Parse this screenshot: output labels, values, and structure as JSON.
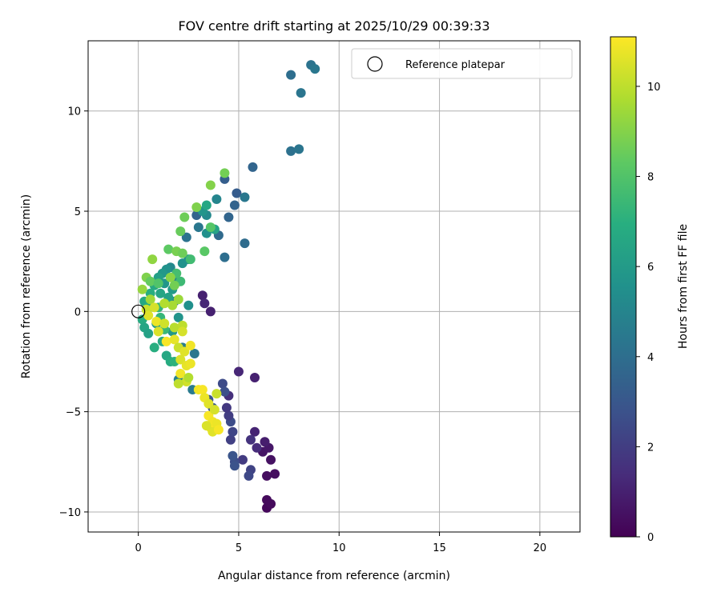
{
  "chart_data": {
    "type": "scatter",
    "title": "FOV centre drift starting at 2025/10/29 00:39:33",
    "xlabel": "Angular distance from reference (arcmin)",
    "ylabel": "Rotation from reference (arcmin)",
    "xlim": [
      -2.5,
      22
    ],
    "ylim": [
      -11,
      13.5
    ],
    "xticks": [
      0,
      5,
      10,
      15,
      20
    ],
    "yticks": [
      -10,
      -5,
      0,
      5,
      10
    ],
    "grid": true,
    "legend": {
      "position": "top-right",
      "entries": [
        "Reference platepar"
      ]
    },
    "reference_point": {
      "x": 0,
      "y": 0,
      "label": "Reference platepar"
    },
    "colorbar": {
      "label": "Hours from first FF file",
      "min": 0,
      "max": 11.1,
      "ticks": [
        0,
        2,
        4,
        6,
        8,
        10
      ],
      "colormap": "viridis"
    },
    "points": [
      {
        "x": 6.4,
        "y": -9.8,
        "t": 0.2
      },
      {
        "x": 6.6,
        "y": -9.6,
        "t": 0.3
      },
      {
        "x": 6.4,
        "y": -9.4,
        "t": 0.3
      },
      {
        "x": 6.4,
        "y": -8.2,
        "t": 0.4
      },
      {
        "x": 6.8,
        "y": -8.1,
        "t": 0.4
      },
      {
        "x": 6.6,
        "y": -7.4,
        "t": 0.5
      },
      {
        "x": 6.2,
        "y": -7.0,
        "t": 0.6
      },
      {
        "x": 6.5,
        "y": -6.8,
        "t": 0.7
      },
      {
        "x": 6.3,
        "y": -6.5,
        "t": 0.9
      },
      {
        "x": 5.8,
        "y": -6.0,
        "t": 1.1
      },
      {
        "x": 5.9,
        "y": -6.8,
        "t": 1.4
      },
      {
        "x": 5.6,
        "y": -6.4,
        "t": 1.6
      },
      {
        "x": 5.2,
        "y": -7.4,
        "t": 1.9
      },
      {
        "x": 5.6,
        "y": -7.9,
        "t": 2.2
      },
      {
        "x": 5.5,
        "y": -8.2,
        "t": 2.4
      },
      {
        "x": 4.8,
        "y": -7.5,
        "t": 2.6
      },
      {
        "x": 4.8,
        "y": -7.7,
        "t": 2.8
      },
      {
        "x": 4.7,
        "y": -7.2,
        "t": 2.9
      },
      {
        "x": 4.6,
        "y": -6.4,
        "t": 2.1
      },
      {
        "x": 4.7,
        "y": -6.0,
        "t": 2.3
      },
      {
        "x": 4.6,
        "y": -5.5,
        "t": 2.6
      },
      {
        "x": 4.5,
        "y": -5.2,
        "t": 2.0
      },
      {
        "x": 4.4,
        "y": -4.8,
        "t": 1.8
      },
      {
        "x": 4.5,
        "y": -4.2,
        "t": 1.5
      },
      {
        "x": 4.2,
        "y": -3.6,
        "t": 2.5
      },
      {
        "x": 4.3,
        "y": -4.0,
        "t": 2.7
      },
      {
        "x": 3.5,
        "y": -4.4,
        "t": 2.9
      },
      {
        "x": 3.7,
        "y": -4.8,
        "t": 3.0
      },
      {
        "x": 5.0,
        "y": -3.0,
        "t": 1.2
      },
      {
        "x": 5.8,
        "y": -3.3,
        "t": 1.0
      },
      {
        "x": 3.2,
        "y": 0.8,
        "t": 1.0
      },
      {
        "x": 3.3,
        "y": 0.4,
        "t": 1.2
      },
      {
        "x": 3.6,
        "y": 0.0,
        "t": 1.0
      },
      {
        "x": 5.7,
        "y": 7.2,
        "t": 3.6
      },
      {
        "x": 4.3,
        "y": 6.6,
        "t": 3.3
      },
      {
        "x": 4.9,
        "y": 5.9,
        "t": 3.2
      },
      {
        "x": 4.8,
        "y": 5.3,
        "t": 3.5
      },
      {
        "x": 4.5,
        "y": 4.7,
        "t": 3.6
      },
      {
        "x": 5.3,
        "y": 5.7,
        "t": 4.4
      },
      {
        "x": 5.3,
        "y": 3.4,
        "t": 3.9
      },
      {
        "x": 4.3,
        "y": 2.7,
        "t": 4.0
      },
      {
        "x": 4.0,
        "y": 3.8,
        "t": 3.8
      },
      {
        "x": 2.9,
        "y": 4.8,
        "t": 3.5
      },
      {
        "x": 2.4,
        "y": 3.7,
        "t": 4.2
      },
      {
        "x": 3.0,
        "y": 4.2,
        "t": 4.4
      },
      {
        "x": 8.6,
        "y": 12.3,
        "t": 4.2
      },
      {
        "x": 8.8,
        "y": 12.1,
        "t": 4.4
      },
      {
        "x": 7.6,
        "y": 11.8,
        "t": 4.0
      },
      {
        "x": 8.1,
        "y": 10.9,
        "t": 4.3
      },
      {
        "x": 7.6,
        "y": 8.0,
        "t": 4.1
      },
      {
        "x": 8.0,
        "y": 8.1,
        "t": 4.3
      },
      {
        "x": 2.8,
        "y": -2.1,
        "t": 4.4
      },
      {
        "x": 2.7,
        "y": -3.9,
        "t": 4.5
      },
      {
        "x": 2.0,
        "y": -3.4,
        "t": 4.8
      },
      {
        "x": 2.2,
        "y": -1.8,
        "t": 4.6
      },
      {
        "x": 1.8,
        "y": 0.5,
        "t": 4.7
      },
      {
        "x": 2.0,
        "y": 1.5,
        "t": 4.9
      },
      {
        "x": 3.9,
        "y": 5.6,
        "t": 5.0
      },
      {
        "x": 3.4,
        "y": 4.8,
        "t": 5.2
      },
      {
        "x": 3.2,
        "y": 5.0,
        "t": 5.7
      },
      {
        "x": 3.4,
        "y": 3.9,
        "t": 5.5
      },
      {
        "x": 3.8,
        "y": 4.1,
        "t": 6.4
      },
      {
        "x": 3.4,
        "y": 5.3,
        "t": 6.6
      },
      {
        "x": 2.5,
        "y": 2.6,
        "t": 5.4
      },
      {
        "x": 2.2,
        "y": 2.4,
        "t": 5.6
      },
      {
        "x": 1.6,
        "y": 2.2,
        "t": 5.2
      },
      {
        "x": 1.4,
        "y": 2.1,
        "t": 5.6
      },
      {
        "x": 1.2,
        "y": 1.9,
        "t": 5.9
      },
      {
        "x": 1.0,
        "y": 1.7,
        "t": 6.2
      },
      {
        "x": 1.3,
        "y": 1.4,
        "t": 5.8
      },
      {
        "x": 1.7,
        "y": 1.1,
        "t": 6.0
      },
      {
        "x": 1.5,
        "y": 0.7,
        "t": 6.3
      },
      {
        "x": 1.1,
        "y": 0.9,
        "t": 6.5
      },
      {
        "x": 0.8,
        "y": 1.3,
        "t": 6.7
      },
      {
        "x": 0.6,
        "y": 0.9,
        "t": 6.9
      },
      {
        "x": 0.3,
        "y": 0.5,
        "t": 6.6
      },
      {
        "x": 0.2,
        "y": -0.4,
        "t": 6.8
      },
      {
        "x": 0.3,
        "y": -0.8,
        "t": 6.5
      },
      {
        "x": 0.5,
        "y": -1.1,
        "t": 6.3
      },
      {
        "x": 0.8,
        "y": -1.8,
        "t": 6.9
      },
      {
        "x": 1.2,
        "y": -1.5,
        "t": 6.7
      },
      {
        "x": 1.4,
        "y": -2.2,
        "t": 6.6
      },
      {
        "x": 1.6,
        "y": -2.5,
        "t": 6.8
      },
      {
        "x": 1.7,
        "y": -1.0,
        "t": 5.9
      },
      {
        "x": 2.0,
        "y": -0.3,
        "t": 5.7
      },
      {
        "x": 2.5,
        "y": 0.3,
        "t": 5.5
      },
      {
        "x": 0.9,
        "y": -0.6,
        "t": 6.1
      },
      {
        "x": 0.5,
        "y": 0.2,
        "t": 7.0
      },
      {
        "x": 1.0,
        "y": 0.2,
        "t": 7.2
      },
      {
        "x": 1.1,
        "y": -0.3,
        "t": 7.3
      },
      {
        "x": 1.3,
        "y": -0.9,
        "t": 7.4
      },
      {
        "x": 1.8,
        "y": -2.5,
        "t": 7.1
      },
      {
        "x": 2.1,
        "y": 1.5,
        "t": 7.5
      },
      {
        "x": 2.1,
        "y": 4.0,
        "t": 8.5
      },
      {
        "x": 2.3,
        "y": 4.7,
        "t": 8.6
      },
      {
        "x": 3.3,
        "y": 3.0,
        "t": 8.2
      },
      {
        "x": 3.6,
        "y": 4.2,
        "t": 8.1
      },
      {
        "x": 2.9,
        "y": 5.2,
        "t": 8.9
      },
      {
        "x": 3.6,
        "y": 6.3,
        "t": 9.0
      },
      {
        "x": 4.3,
        "y": 6.9,
        "t": 8.7
      },
      {
        "x": 2.6,
        "y": 2.6,
        "t": 7.6
      },
      {
        "x": 1.9,
        "y": 1.9,
        "t": 7.7
      },
      {
        "x": 1.5,
        "y": 3.1,
        "t": 8.3
      },
      {
        "x": 1.9,
        "y": 3.0,
        "t": 8.8
      },
      {
        "x": 2.2,
        "y": 2.9,
        "t": 8.6
      },
      {
        "x": 0.7,
        "y": 2.6,
        "t": 9.2
      },
      {
        "x": 0.4,
        "y": 1.7,
        "t": 8.9
      },
      {
        "x": 0.2,
        "y": 1.1,
        "t": 9.3
      },
      {
        "x": 0.6,
        "y": 1.5,
        "t": 8.4
      },
      {
        "x": 1.0,
        "y": 1.4,
        "t": 8.0
      },
      {
        "x": 1.6,
        "y": 1.7,
        "t": 9.1
      },
      {
        "x": 1.8,
        "y": 1.3,
        "t": 8.7
      },
      {
        "x": 2.0,
        "y": 0.6,
        "t": 9.4
      },
      {
        "x": 1.7,
        "y": 0.3,
        "t": 9.6
      },
      {
        "x": 1.3,
        "y": 0.4,
        "t": 9.8
      },
      {
        "x": 0.6,
        "y": 0.6,
        "t": 9.5
      },
      {
        "x": 0.4,
        "y": 0.1,
        "t": 10.2
      },
      {
        "x": 0.8,
        "y": 0.2,
        "t": 10.4
      },
      {
        "x": 0.5,
        "y": -0.2,
        "t": 10.6
      },
      {
        "x": 0.9,
        "y": -0.5,
        "t": 10.8
      },
      {
        "x": 1.3,
        "y": -0.6,
        "t": 10.3
      },
      {
        "x": 1.0,
        "y": -1.0,
        "t": 10.5
      },
      {
        "x": 1.4,
        "y": -1.5,
        "t": 11.0
      },
      {
        "x": 1.8,
        "y": -1.4,
        "t": 10.7
      },
      {
        "x": 1.8,
        "y": -0.8,
        "t": 9.9
      },
      {
        "x": 2.2,
        "y": -0.7,
        "t": 10.0
      },
      {
        "x": 2.2,
        "y": -1.0,
        "t": 10.4
      },
      {
        "x": 2.0,
        "y": -1.8,
        "t": 10.2
      },
      {
        "x": 2.3,
        "y": -2.0,
        "t": 10.6
      },
      {
        "x": 2.6,
        "y": -1.7,
        "t": 10.9
      },
      {
        "x": 2.1,
        "y": -2.4,
        "t": 10.5
      },
      {
        "x": 2.4,
        "y": -2.7,
        "t": 10.7
      },
      {
        "x": 2.6,
        "y": -2.6,
        "t": 10.8
      },
      {
        "x": 2.1,
        "y": -3.1,
        "t": 10.9
      },
      {
        "x": 2.4,
        "y": -3.5,
        "t": 10.3
      },
      {
        "x": 2.0,
        "y": -3.6,
        "t": 10.0
      },
      {
        "x": 2.5,
        "y": -3.3,
        "t": 9.8
      },
      {
        "x": 3.0,
        "y": -3.9,
        "t": 10.9
      },
      {
        "x": 3.2,
        "y": -3.9,
        "t": 11.0
      },
      {
        "x": 3.3,
        "y": -4.3,
        "t": 10.8
      },
      {
        "x": 3.5,
        "y": -4.6,
        "t": 10.6
      },
      {
        "x": 3.5,
        "y": -5.2,
        "t": 11.0
      },
      {
        "x": 3.7,
        "y": -5.5,
        "t": 10.9
      },
      {
        "x": 3.6,
        "y": -5.8,
        "t": 11.1
      },
      {
        "x": 3.9,
        "y": -5.6,
        "t": 10.8
      },
      {
        "x": 3.7,
        "y": -6.0,
        "t": 10.6
      },
      {
        "x": 3.4,
        "y": -5.7,
        "t": 10.5
      },
      {
        "x": 4.0,
        "y": -5.9,
        "t": 11.0
      },
      {
        "x": 3.8,
        "y": -4.9,
        "t": 10.4
      },
      {
        "x": 3.9,
        "y": -4.1,
        "t": 10.2
      }
    ]
  }
}
